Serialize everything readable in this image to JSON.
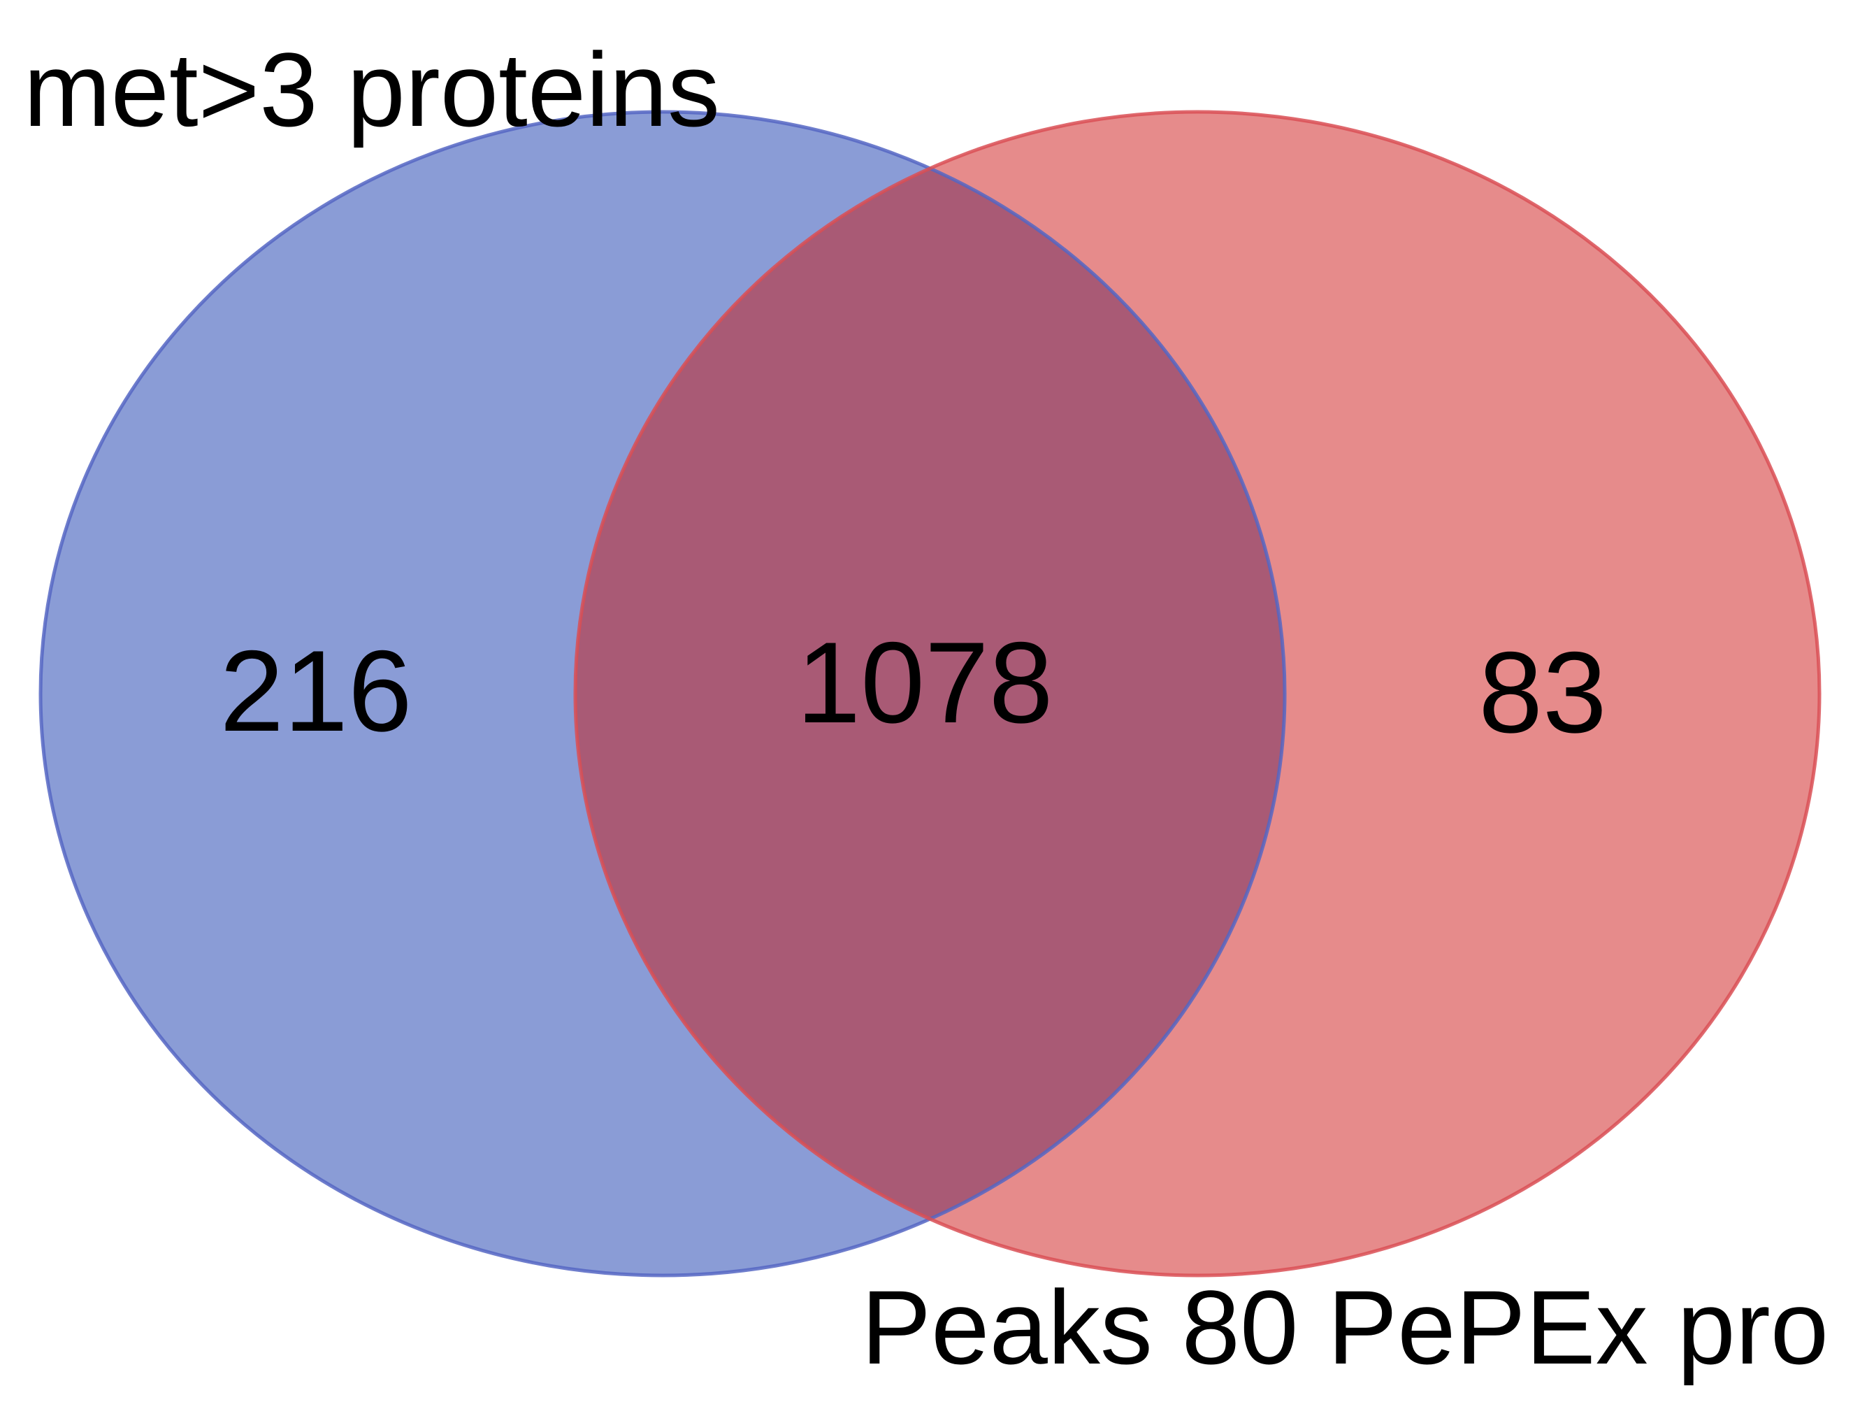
{
  "venn": {
    "sets": [
      {
        "id": "left",
        "label": "met>3 proteins",
        "only_count": "216",
        "fill_color": "#8a9cd6",
        "stroke_color": "#5566c3"
      },
      {
        "id": "right",
        "label": "Peaks 80 PePEx pro",
        "only_count": "83",
        "fill_color": "#e68b8b",
        "stroke_color": "#d94f55"
      }
    ],
    "intersection": {
      "count": "1078",
      "fill_color": "#a95a75"
    }
  }
}
